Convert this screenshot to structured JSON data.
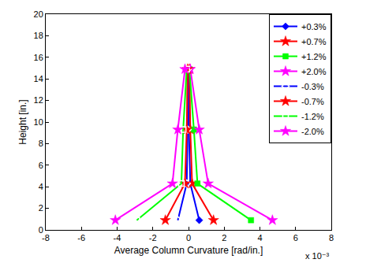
{
  "chart_data": {
    "type": "line",
    "x_label": "Average Column Curvature [rad/in.]",
    "y_label": "Height [in.]",
    "annotations": [
      "x 10⁻³"
    ],
    "xlim": [
      -8,
      8
    ],
    "xticks": [
      -8,
      -6,
      -4,
      -2,
      0,
      2,
      4,
      6,
      8
    ],
    "ylim": [
      0,
      20
    ],
    "yticks": [
      0,
      2,
      4,
      6,
      8,
      10,
      12,
      14,
      16,
      18,
      20
    ],
    "grid": false,
    "legend": "upper right",
    "series": [
      {
        "name": "+0.3%",
        "color": "#0000ff",
        "marker": "diamond",
        "line_style": "solid",
        "x": [
          0.6,
          0.1,
          0.02,
          0.05
        ],
        "y": [
          0.9,
          4.3,
          9.3,
          14.9
        ]
      },
      {
        "name": "+0.7%",
        "color": "#ff0000",
        "marker": "star",
        "line_style": "solid",
        "x": [
          1.4,
          0.2,
          0.1,
          0.05
        ],
        "y": [
          0.9,
          4.3,
          9.3,
          14.9
        ]
      },
      {
        "name": "+1.2%",
        "color": "#00ff00",
        "marker": "square",
        "line_style": "solid",
        "x": [
          3.5,
          0.5,
          0.3,
          0.05
        ],
        "y": [
          0.9,
          4.3,
          9.3,
          14.9
        ]
      },
      {
        "name": "+2.0%",
        "color": "#ff00ff",
        "marker": "star",
        "line_style": "solid",
        "x": [
          4.7,
          1.1,
          0.6,
          0.1
        ],
        "y": [
          0.9,
          4.3,
          9.3,
          14.9
        ]
      },
      {
        "name": "-0.3%",
        "color": "#0000ff",
        "marker": "diamond-open",
        "line_style": "solid",
        "x": [
          -0.6,
          -0.1,
          -0.05,
          -0.05
        ],
        "y": [
          0.9,
          4.3,
          9.3,
          14.9
        ]
      },
      {
        "name": "-0.7%",
        "color": "#ff0000",
        "marker": "star",
        "line_style": "solid",
        "x": [
          -1.3,
          -0.2,
          -0.1,
          -0.05
        ],
        "y": [
          0.9,
          4.3,
          9.3,
          14.9
        ]
      },
      {
        "name": "-1.2%",
        "color": "#00ff00",
        "marker": "square-open",
        "line_style": "solid",
        "x": [
          -2.9,
          -0.4,
          -0.3,
          -0.1
        ],
        "y": [
          0.9,
          4.3,
          9.3,
          14.9
        ]
      },
      {
        "name": "-2.0%",
        "color": "#ff00ff",
        "marker": "star",
        "line_style": "solid",
        "x": [
          -4.1,
          -0.9,
          -0.6,
          -0.2
        ],
        "y": [
          0.9,
          4.3,
          9.3,
          14.9
        ]
      }
    ]
  }
}
